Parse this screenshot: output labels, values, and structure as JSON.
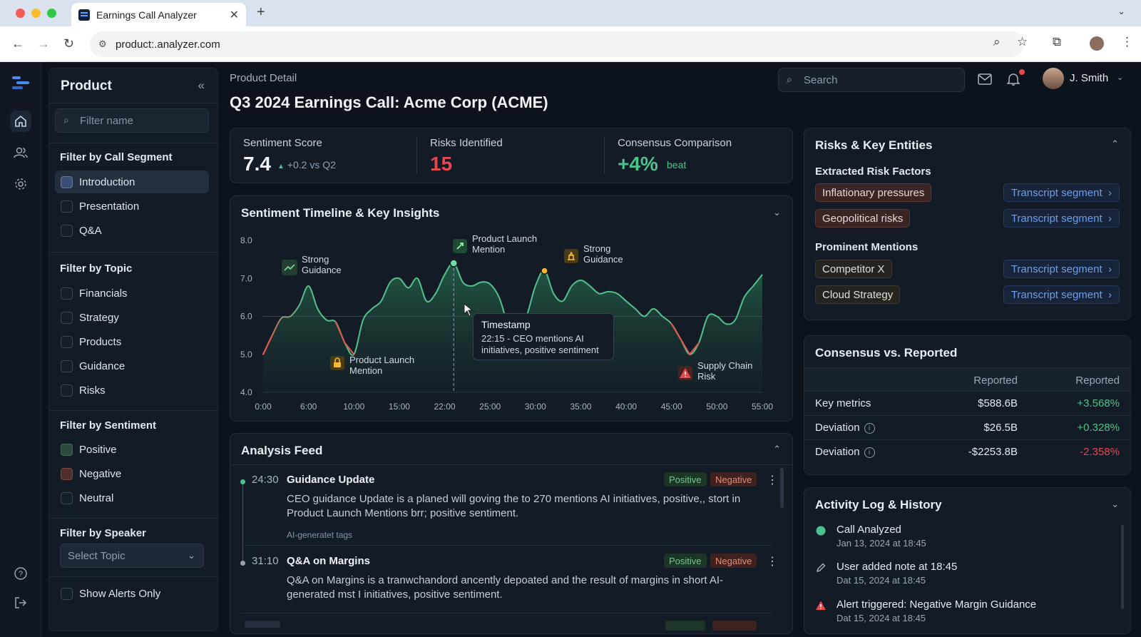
{
  "browser": {
    "tab_title": "Earnings Call Analyzer",
    "url": "product:.analyzer.com"
  },
  "sidebar": {
    "title": "Product",
    "filter_placeholder": "Filter name",
    "segment_heading": "Filter by Call Segment",
    "segments": [
      "Introduction",
      "Presentation",
      "Q&A"
    ],
    "topic_heading": "Filter by Topic",
    "topics": [
      "Financials",
      "Strategy",
      "Products",
      "Guidance",
      "Risks"
    ],
    "sentiment_heading": "Filter by Sentiment",
    "sentiments": [
      "Positive",
      "Negative",
      "Neutral"
    ],
    "speaker_heading": "Filter by Speaker",
    "speaker_select": "Select Topic",
    "alerts_label": "Show Alerts Only"
  },
  "header": {
    "breadcrumb": "Product Detail",
    "title": "Q3 2024 Earnings Call: Acme Corp (ACME)",
    "search_placeholder": "Search",
    "user_name": "J. Smith"
  },
  "kpis": {
    "sentiment_label": "Sentiment Score",
    "sentiment_value": "7.4",
    "sentiment_delta": "+0.2 vs Q2",
    "risks_label": "Risks Identified",
    "risks_value": "15",
    "consensus_label": "Consensus Comparison",
    "consensus_value": "+4%",
    "consensus_note": "beat"
  },
  "timeline": {
    "title": "Sentiment Timeline & Key Insights",
    "tooltip_title": "Timestamp",
    "tooltip_line1": "22:15 - CEO mentions AI",
    "tooltip_line2": "initiatives, positive sentiment",
    "annotations": {
      "strong_guidance_1a": "Strong",
      "strong_guidance_1b": "Guidance",
      "launch_top_a": "Product Launch",
      "launch_top_b": "Mention",
      "strong_guidance_2a": "Strong",
      "strong_guidance_2b": "Guidance",
      "launch_low_a": "Product Launch",
      "launch_low_b": "Mention",
      "supply_a": "Supply Chain",
      "supply_b": "Risk"
    }
  },
  "chart_data": {
    "type": "area",
    "title": "Sentiment Timeline & Key Insights",
    "x_ticks": [
      "0:00",
      "6:00",
      "10:00",
      "15:00",
      "22:00",
      "25:00",
      "30:00",
      "35:00",
      "40:00",
      "45:00",
      "50:00",
      "55:00"
    ],
    "y_ticks": [
      "8.0",
      "7.0",
      "6.0",
      "5.0",
      "4.0"
    ],
    "ylim": [
      4.0,
      8.0
    ],
    "baseline": 6.0,
    "series": [
      {
        "points": [
          [
            0,
            5.0
          ],
          [
            1,
            5.5
          ],
          [
            2,
            5.95
          ],
          [
            3,
            6.0
          ],
          [
            4,
            6.3
          ],
          [
            5,
            6.8
          ],
          [
            6,
            6.2
          ],
          [
            7,
            5.9
          ],
          [
            8,
            5.85
          ],
          [
            9,
            5.3
          ],
          [
            10,
            5.0
          ],
          [
            11,
            5.9
          ],
          [
            12,
            6.2
          ],
          [
            13,
            6.4
          ],
          [
            14,
            6.9
          ],
          [
            15,
            7.0
          ],
          [
            16,
            6.75
          ],
          [
            17,
            7.0
          ],
          [
            18,
            6.4
          ],
          [
            19,
            6.6
          ],
          [
            20,
            7.1
          ],
          [
            21,
            7.4
          ],
          [
            22,
            6.9
          ],
          [
            23,
            6.8
          ],
          [
            24,
            6.9
          ],
          [
            25,
            6.85
          ],
          [
            26,
            6.5
          ],
          [
            27,
            5.8
          ],
          [
            28,
            5.75
          ],
          [
            29,
            6.0
          ],
          [
            30,
            6.8
          ],
          [
            31,
            7.2
          ],
          [
            32,
            6.6
          ],
          [
            33,
            6.4
          ],
          [
            34,
            6.8
          ],
          [
            35,
            6.95
          ],
          [
            36,
            6.8
          ],
          [
            37,
            6.6
          ],
          [
            38,
            6.65
          ],
          [
            39,
            6.6
          ],
          [
            40,
            6.4
          ],
          [
            41,
            6.2
          ],
          [
            42,
            6.0
          ],
          [
            43,
            6.2
          ],
          [
            44,
            6.0
          ],
          [
            45,
            5.8
          ],
          [
            46,
            5.4
          ],
          [
            47,
            5.0
          ],
          [
            48,
            5.3
          ],
          [
            49,
            6.0
          ],
          [
            50,
            6.0
          ],
          [
            51,
            5.8
          ],
          [
            52,
            5.9
          ],
          [
            53,
            6.5
          ],
          [
            54,
            6.8
          ],
          [
            55,
            7.1
          ]
        ]
      }
    ]
  },
  "risks": {
    "title": "Risks & Key Entities",
    "risk_heading": "Extracted Risk Factors",
    "risk_items": [
      "Inflationary pressures",
      "Geopolitical risks"
    ],
    "mention_heading": "Prominent Mentions",
    "mention_items": [
      "Competitor X",
      "Cloud Strategy"
    ],
    "segment_link": "Transcript segment"
  },
  "consensus": {
    "title": "Consensus vs. Reported",
    "col1": "Reported",
    "col2": "Reported",
    "rows": [
      {
        "label": "Key metrics",
        "value": "$588.6B",
        "delta": "+3.568%"
      },
      {
        "label": "Deviation",
        "value": "$26.5B",
        "delta": "+0.328%"
      },
      {
        "label": "Deviation",
        "value": "-$2253.8B",
        "delta": "-2.358%"
      }
    ]
  },
  "feed": {
    "title": "Analysis Feed",
    "positive_badge": "Positive",
    "negative_badge": "Negative",
    "items": [
      {
        "time": "24:30",
        "title": "Guidance Update",
        "body": "CEO guidance Update is a planed will goving the to 270 mentions AI initiatives, positive,, stort in Product Launch Mentions brr; positive sentiment.",
        "tags": "AI-generatet tags"
      },
      {
        "time": "31:10",
        "title": "Q&A on Margins",
        "body": "Q&A on Margins is a tranwchandord ancently depoated and the result of margins in short AI-generated mst I initiatives, positive sentiment.",
        "tags": ""
      }
    ]
  },
  "activity": {
    "title": "Activity Log & History",
    "items": [
      {
        "text": "Call Analyzed",
        "date": "Jan 13, 2024 at 18:45"
      },
      {
        "text": "User added note at 18:45",
        "date": "Dat 15, 2024 at 18:45"
      },
      {
        "text": "Alert triggered: Negative Margin Guidance",
        "date": "Dat 15, 2024 at 18:45"
      }
    ]
  },
  "colors": {
    "positive": "#4cc38a",
    "negative": "#e5484d",
    "accent": "#6f9ee8",
    "highlight": "#f5b935"
  }
}
